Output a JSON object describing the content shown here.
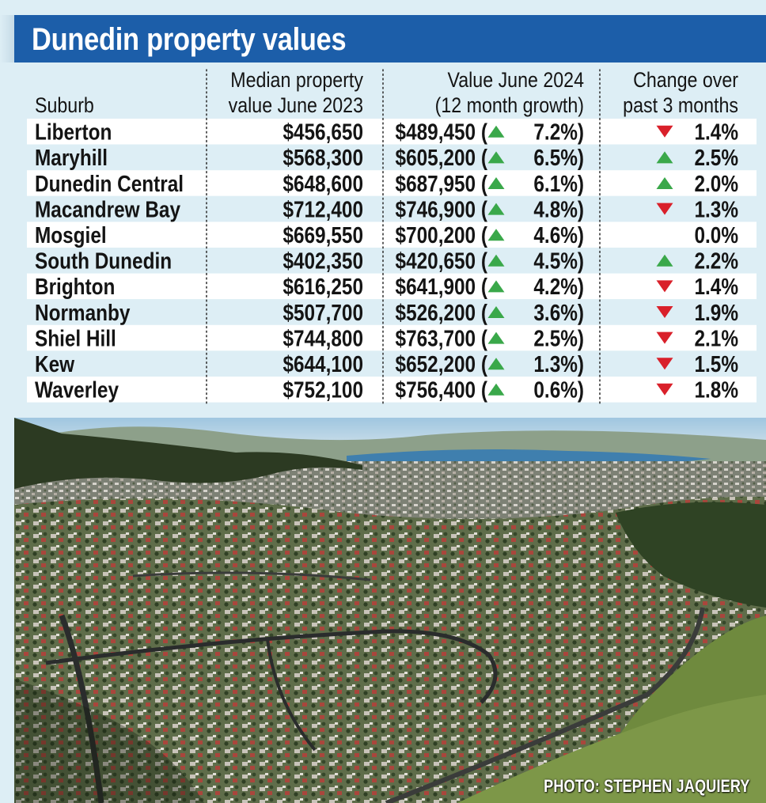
{
  "title": "Dunedin property values",
  "photo_credit": "PHOTO: STEPHEN JAQUIERY",
  "colors": {
    "banner": "#1c5ea9",
    "background": "#ddeef5",
    "row_white": "#ffffff",
    "row_blue": "#ddeef5",
    "arrow_up": "#3aa84a",
    "arrow_down": "#d9202a",
    "text": "#141414"
  },
  "photo": {
    "description_icon": "aerial-city-photo"
  },
  "chart_data": {
    "type": "table",
    "columns": [
      {
        "key": "suburb",
        "line1": "",
        "line2": "Suburb"
      },
      {
        "key": "median_2023",
        "line1": "Median property",
        "line2": "value June 2023"
      },
      {
        "key": "value_2024",
        "line1": "Value June 2024",
        "line2": "(12 month growth)"
      },
      {
        "key": "change_3m",
        "line1": "Change over",
        "line2": "past 3 months"
      }
    ],
    "rows": [
      {
        "suburb": "Liberton",
        "median_2023": "$456,650",
        "value_2024": "$489,450",
        "growth_dir": "up",
        "growth": "7.2%",
        "change_dir": "down",
        "change": "1.4%"
      },
      {
        "suburb": "Maryhill",
        "median_2023": "$568,300",
        "value_2024": "$605,200",
        "growth_dir": "up",
        "growth": "6.5%",
        "change_dir": "up",
        "change": "2.5%"
      },
      {
        "suburb": "Dunedin Central",
        "median_2023": "$648,600",
        "value_2024": "$687,950",
        "growth_dir": "up",
        "growth": "6.1%",
        "change_dir": "up",
        "change": "2.0%"
      },
      {
        "suburb": "Macandrew Bay",
        "median_2023": "$712,400",
        "value_2024": "$746,900",
        "growth_dir": "up",
        "growth": "4.8%",
        "change_dir": "down",
        "change": "1.3%"
      },
      {
        "suburb": "Mosgiel",
        "median_2023": "$669,550",
        "value_2024": "$700,200",
        "growth_dir": "up",
        "growth": "4.6%",
        "change_dir": "none",
        "change": "0.0%"
      },
      {
        "suburb": "South Dunedin",
        "median_2023": "$402,350",
        "value_2024": "$420,650",
        "growth_dir": "up",
        "growth": "4.5%",
        "change_dir": "up",
        "change": "2.2%"
      },
      {
        "suburb": "Brighton",
        "median_2023": "$616,250",
        "value_2024": "$641,900",
        "growth_dir": "up",
        "growth": "4.2%",
        "change_dir": "down",
        "change": "1.4%"
      },
      {
        "suburb": "Normanby",
        "median_2023": "$507,700",
        "value_2024": "$526,200",
        "growth_dir": "up",
        "growth": "3.6%",
        "change_dir": "down",
        "change": "1.9%"
      },
      {
        "suburb": "Shiel Hill",
        "median_2023": "$744,800",
        "value_2024": "$763,700",
        "growth_dir": "up",
        "growth": "2.5%",
        "change_dir": "down",
        "change": "2.1%"
      },
      {
        "suburb": "Kew",
        "median_2023": "$644,100",
        "value_2024": "$652,200",
        "growth_dir": "up",
        "growth": "1.3%",
        "change_dir": "down",
        "change": "1.5%"
      },
      {
        "suburb": "Waverley",
        "median_2023": "$752,100",
        "value_2024": "$756,400",
        "growth_dir": "up",
        "growth": "0.6%",
        "change_dir": "down",
        "change": "1.8%"
      }
    ]
  }
}
